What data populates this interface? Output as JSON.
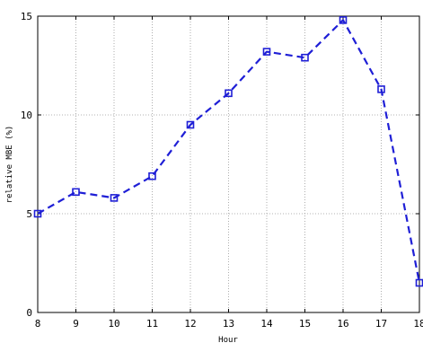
{
  "chart_data": {
    "type": "line",
    "title": "",
    "xlabel": "Hour",
    "ylabel": "relative MBE (%)",
    "x": [
      8,
      9,
      10,
      11,
      12,
      13,
      14,
      15,
      16,
      17,
      18
    ],
    "series": [
      {
        "values": [
          5.0,
          6.1,
          5.8,
          6.9,
          9.5,
          11.1,
          13.2,
          12.9,
          14.8,
          11.3,
          1.5
        ],
        "color": "#1f1fd6",
        "line_style": "dashed",
        "marker": "square"
      }
    ],
    "xlim": [
      8,
      18
    ],
    "ylim": [
      0,
      15
    ],
    "xticks": [
      "8",
      "9",
      "10",
      "11",
      "12",
      "13",
      "14",
      "15",
      "16",
      "17",
      "18"
    ],
    "yticks": [
      "0",
      "5",
      "10",
      "15"
    ],
    "grid": true,
    "grid_style": "dotted"
  }
}
